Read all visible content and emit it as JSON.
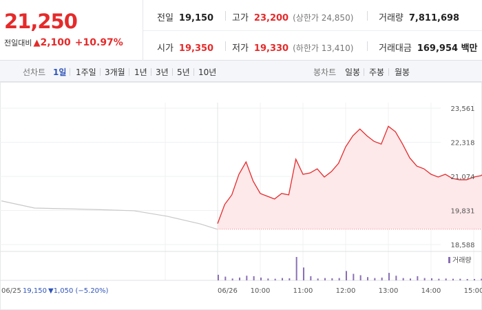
{
  "quote": {
    "price": "21,250",
    "change_label": "전일대비",
    "change_symbol": "▲",
    "change_value": "2,100",
    "change_percent": "+10.97%"
  },
  "stats": {
    "prev_close": {
      "label": "전일",
      "value": "19,150"
    },
    "high": {
      "label": "고가",
      "value": "23,200",
      "sub": "(상한가 24,850)"
    },
    "volume": {
      "label": "거래량",
      "value": "7,811,698"
    },
    "open": {
      "label": "시가",
      "value": "19,350"
    },
    "low": {
      "label": "저가",
      "value": "19,330",
      "sub": "(하한가 13,410)"
    },
    "amount": {
      "label": "거래대금",
      "value": "169,954 백만"
    }
  },
  "toolbar": {
    "line_label": "선차트",
    "periods": [
      "1일",
      "1주일",
      "3개월",
      "1년",
      "3년",
      "5년",
      "10년"
    ],
    "active_period": "1일",
    "candle_label": "봉차트",
    "candles": [
      "일봉",
      "주봉",
      "월봉"
    ]
  },
  "colors": {
    "up": "#e52a2a",
    "down": "#2f54b8",
    "volume": "#8a6fb5",
    "prev_line": "#c8c8c8",
    "area_fill": "#fde8ea"
  },
  "chart_data": {
    "type": "line",
    "title": "",
    "ylabel": "",
    "y_ticks": [
      "23,561",
      "22,318",
      "21,074",
      "19,831",
      "18,588"
    ],
    "ylim": [
      18588,
      23561
    ],
    "prev_day": {
      "date_label": "06/25",
      "close_text": "19,150",
      "change_symbol": "▼",
      "change_text": "1,050",
      "change_percent_text": "(−5.20%)",
      "x": [
        "09:00",
        "10:00",
        "11:00",
        "12:00",
        "13:00",
        "14:00",
        "15:00",
        "15:30"
      ],
      "y": [
        20180,
        19920,
        19890,
        19860,
        19820,
        19620,
        19340,
        19150
      ]
    },
    "today": {
      "date_label": "06/26",
      "x_ticks": [
        "10:00",
        "11:00",
        "12:00",
        "13:00",
        "14:00",
        "15:00"
      ],
      "x": [
        "09:00",
        "09:10",
        "09:20",
        "09:30",
        "09:40",
        "09:50",
        "10:00",
        "10:10",
        "10:20",
        "10:30",
        "10:40",
        "10:50",
        "11:00",
        "11:10",
        "11:20",
        "11:30",
        "11:40",
        "11:50",
        "12:00",
        "12:10",
        "12:20",
        "12:30",
        "12:40",
        "12:50",
        "13:00",
        "13:10",
        "13:20",
        "13:30",
        "13:40",
        "13:50",
        "14:00",
        "14:10",
        "14:20",
        "14:30",
        "14:40",
        "14:50",
        "15:00",
        "15:10",
        "15:20"
      ],
      "y": [
        19350,
        20050,
        20400,
        21150,
        21600,
        20900,
        20450,
        20350,
        20250,
        20450,
        20400,
        21700,
        21150,
        21200,
        21350,
        21050,
        21250,
        21550,
        22150,
        22550,
        22800,
        22550,
        22350,
        22250,
        22900,
        22700,
        22250,
        21750,
        21450,
        21350,
        21150,
        21050,
        21150,
        21000,
        20950,
        20950,
        21050,
        21100,
        21250
      ]
    },
    "volume": {
      "legend": "거래량",
      "x": [
        "09:00",
        "09:10",
        "09:20",
        "09:30",
        "09:40",
        "09:50",
        "10:00",
        "10:10",
        "10:20",
        "10:30",
        "10:40",
        "10:50",
        "11:00",
        "11:10",
        "11:20",
        "11:30",
        "11:40",
        "11:50",
        "12:00",
        "12:10",
        "12:20",
        "12:30",
        "12:40",
        "12:50",
        "13:00",
        "13:10",
        "13:20",
        "13:30",
        "13:40",
        "13:50",
        "14:00",
        "14:10",
        "14:20",
        "14:30",
        "14:40",
        "14:50",
        "15:00",
        "15:10",
        "15:20"
      ],
      "values": [
        24,
        16,
        8,
        12,
        20,
        18,
        12,
        8,
        7,
        10,
        9,
        100,
        55,
        18,
        8,
        10,
        9,
        10,
        40,
        28,
        22,
        14,
        10,
        12,
        32,
        20,
        10,
        8,
        18,
        10,
        9,
        7,
        8,
        7,
        7,
        6,
        6,
        7,
        8
      ]
    }
  }
}
